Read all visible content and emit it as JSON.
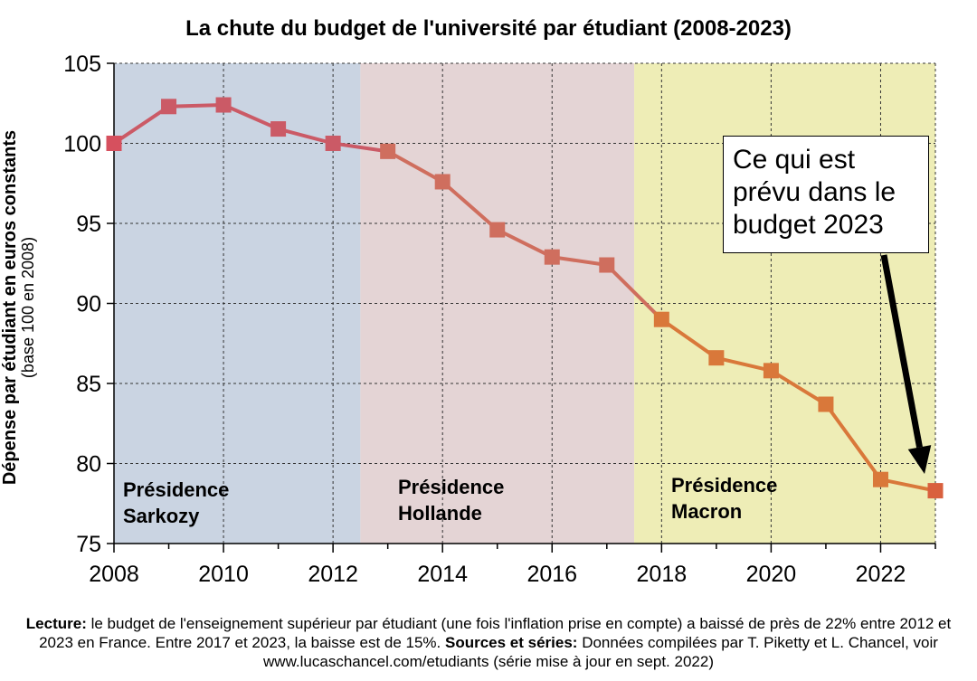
{
  "chart_data": {
    "type": "line",
    "title": "La chute du budget de l'université par étudiant (2008-2023)",
    "ylabel": "Dépense par étudiant en euros constants",
    "ylabel_sub": "(base 100 en 2008)",
    "xlabel": "",
    "x": [
      2008,
      2009,
      2010,
      2011,
      2012,
      2013,
      2014,
      2015,
      2016,
      2017,
      2018,
      2019,
      2020,
      2021,
      2022,
      2023
    ],
    "values": [
      100,
      102.3,
      102.4,
      100.9,
      100,
      99.5,
      97.6,
      94.6,
      92.9,
      92.4,
      89,
      86.6,
      85.8,
      83.7,
      79,
      78.3
    ],
    "xlim": [
      2008,
      2023
    ],
    "ylim": [
      75,
      105
    ],
    "xticks": [
      2008,
      2010,
      2012,
      2014,
      2016,
      2018,
      2020,
      2022
    ],
    "yticks": [
      75,
      80,
      85,
      90,
      95,
      100,
      105
    ],
    "grid": true,
    "regions": [
      {
        "from": 2008,
        "to": 2012.5,
        "line1": "Présidence",
        "line2": "Sarkozy",
        "color": "#cad4e2",
        "line_color": "#cb5a66"
      },
      {
        "from": 2012.5,
        "to": 2017.5,
        "line1": "Présidence",
        "line2": "Hollande",
        "color": "#e4d4d5",
        "line_color": "#cf6e5e"
      },
      {
        "from": 2017.5,
        "to": 2023,
        "line1": "Présidence",
        "line2": "Macron",
        "color": "#eeedb6",
        "line_color": "#d9783a"
      }
    ],
    "annotation": {
      "lines": [
        "Ce qui est",
        "prévu dans le",
        "budget 2023"
      ]
    }
  },
  "footnote": {
    "lecture_label": "Lecture:",
    "lecture_text": " le budget de l'enseignement supérieur par étudiant (une fois l'inflation prise en compte) a baissé de près de 22% entre 2012 et 2023 en France. Entre 2017 et 2023, la baisse est de 15%. ",
    "sources_label": "Sources et séries:",
    "sources_text": " Données compilées par T. Piketty et L. Chancel, voir www.lucaschancel.com/etudiants (série mise à jour en sept. 2022)"
  }
}
